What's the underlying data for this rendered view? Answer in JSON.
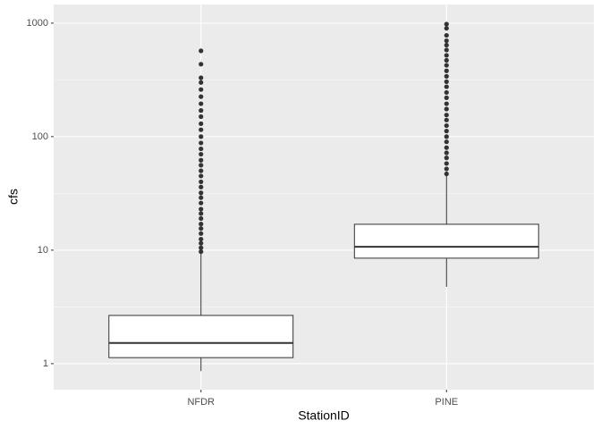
{
  "chart_data": {
    "type": "box",
    "x_label": "StationID",
    "y_label": "cfs",
    "categories": [
      "NFDR",
      "PINE"
    ],
    "boxes": [
      {
        "whisker_low": 0.86,
        "q1": 1.13,
        "median": 1.52,
        "q3": 2.66,
        "whisker_high": 9.5,
        "outliers": [
          9.7,
          10.5,
          11.5,
          12.5,
          14,
          15.5,
          17,
          19,
          21,
          23,
          26,
          29,
          32,
          36,
          40,
          45,
          50,
          56,
          62,
          70,
          78,
          88,
          100,
          115,
          130,
          150,
          170,
          195,
          225,
          260,
          300,
          330,
          435,
          570
        ]
      },
      {
        "whisker_low": 4.75,
        "q1": 8.5,
        "median": 10.7,
        "q3": 16.9,
        "whisker_high": 45.8,
        "outliers": [
          47,
          52,
          58,
          65,
          72,
          80,
          90,
          100,
          112,
          125,
          140,
          155,
          175,
          195,
          220,
          245,
          275,
          305,
          340,
          380,
          425,
          470,
          520,
          580,
          640,
          700,
          780,
          900,
          980
        ]
      }
    ],
    "box_fill": "#ffffff",
    "box_stroke": "#333333",
    "outlier_color": "#333333",
    "log_scale": true,
    "ylim": [
      0.59,
      1460
    ],
    "yticks": [
      1,
      10,
      100,
      1000
    ],
    "grid": true
  }
}
